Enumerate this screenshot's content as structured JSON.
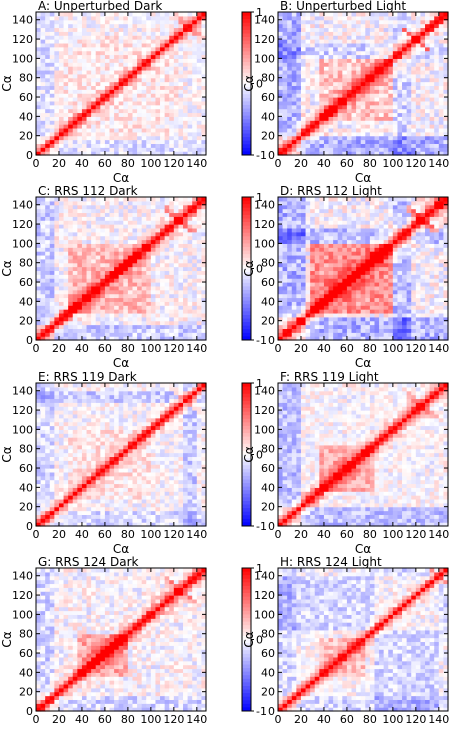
{
  "chart_data": [
    {
      "type": "heatmap",
      "title": "A: Unperturbed Dark",
      "xlabel": "Cα",
      "ylabel": "Cα",
      "xlim": [
        0,
        148
      ],
      "ylim": [
        0,
        148
      ],
      "xticks": [
        0,
        20,
        40,
        60,
        80,
        100,
        120,
        140
      ],
      "yticks": [
        0,
        20,
        40,
        60,
        80,
        100,
        120,
        140
      ],
      "colorbar": {
        "min": -1,
        "max": 1,
        "ticks": [
          "1",
          "0",
          "-1"
        ],
        "colors": [
          "#0000ff",
          "#ffffff",
          "#ff0000"
        ]
      },
      "features": {
        "block": {
          "range": [
            20,
            125
          ],
          "v": 0.08
        },
        "x_cross": {
          "center": 133,
          "halfwidth": 14,
          "v": 0.5
        },
        "neg_bands": [
          {
            "range": [
              0,
              15
            ],
            "v": -0.12
          }
        ],
        "noise": 0.18,
        "diag_width": 4
      }
    },
    {
      "type": "heatmap",
      "title": "B: Unperturbed Light",
      "xlabel": "Cα",
      "ylabel": "Cα",
      "xlim": [
        0,
        148
      ],
      "ylim": [
        0,
        148
      ],
      "xticks": [
        0,
        20,
        40,
        60,
        80,
        100,
        120,
        140
      ],
      "yticks": [
        0,
        20,
        40,
        60,
        80,
        100,
        120,
        140
      ],
      "colorbar": {
        "min": -1,
        "max": 1,
        "ticks": [
          "1",
          "0",
          "-1"
        ],
        "colors": [
          "#0000ff",
          "#ffffff",
          "#ff0000"
        ]
      },
      "features": {
        "block": {
          "range": [
            35,
            100
          ],
          "v": 0.22
        },
        "x_cross": {
          "center": 120,
          "halfwidth": 14,
          "v": 0.6
        },
        "neg_bands": [
          {
            "range": [
              0,
              20
            ],
            "v": -0.3
          },
          {
            "range": [
              100,
              115
            ],
            "v": -0.15
          }
        ],
        "noise": 0.22,
        "diag_width": 5
      }
    },
    {
      "type": "heatmap",
      "title": "C: RRS 112 Dark",
      "xlabel": "Cα",
      "ylabel": "Cα",
      "xlim": [
        0,
        148
      ],
      "ylim": [
        0,
        148
      ],
      "xticks": [
        0,
        20,
        40,
        60,
        80,
        100,
        120,
        140
      ],
      "yticks": [
        0,
        20,
        40,
        60,
        80,
        100,
        120,
        140
      ],
      "colorbar": {
        "min": -1,
        "max": 1,
        "ticks": [
          "1",
          "0",
          "-1"
        ],
        "colors": [
          "#0000ff",
          "#ffffff",
          "#ff0000"
        ]
      },
      "features": {
        "block": {
          "range": [
            30,
            100
          ],
          "v": 0.25
        },
        "x_cross": {
          "center": 125,
          "halfwidth": 14,
          "v": 0.55
        },
        "neg_bands": [
          {
            "range": [
              0,
              15
            ],
            "v": -0.2
          }
        ],
        "noise": 0.2,
        "diag_width": 5
      }
    },
    {
      "type": "heatmap",
      "title": "D: RRS 112 Light",
      "xlabel": "Cα",
      "ylabel": "Cα",
      "xlim": [
        0,
        148
      ],
      "ylim": [
        0,
        148
      ],
      "xticks": [
        0,
        20,
        40,
        60,
        80,
        100,
        120,
        140
      ],
      "yticks": [
        0,
        20,
        40,
        60,
        80,
        100,
        120,
        140
      ],
      "colorbar": {
        "min": -1,
        "max": 1,
        "ticks": [
          "1",
          "0",
          "-1"
        ],
        "colors": [
          "#0000ff",
          "#ffffff",
          "#ff0000"
        ]
      },
      "features": {
        "block": {
          "range": [
            30,
            100
          ],
          "v": 0.42
        },
        "x_cross": {
          "center": 125,
          "halfwidth": 14,
          "v": 0.6
        },
        "neg_bands": [
          {
            "range": [
              0,
              25
            ],
            "v": -0.3
          },
          {
            "range": [
              100,
              115
            ],
            "v": -0.25
          }
        ],
        "noise": 0.22,
        "diag_width": 6
      }
    },
    {
      "type": "heatmap",
      "title": "E: RRS 119 Dark",
      "xlabel": "Cα",
      "ylabel": "Cα",
      "xlim": [
        0,
        148
      ],
      "ylim": [
        0,
        148
      ],
      "xticks": [
        0,
        20,
        40,
        60,
        80,
        100,
        120,
        140
      ],
      "yticks": [
        0,
        20,
        40,
        60,
        80,
        100,
        120,
        140
      ],
      "colorbar": {
        "min": -1,
        "max": 1,
        "ticks": [
          "1",
          "0",
          "-1"
        ],
        "colors": [
          "#0000ff",
          "#ffffff",
          "#ff0000"
        ]
      },
      "features": {
        "block": {
          "range": [
            30,
            100
          ],
          "v": 0.1
        },
        "x_cross": {
          "center": 130,
          "halfwidth": 12,
          "v": 0.4
        },
        "neg_bands": [
          {
            "range": [
              0,
              15
            ],
            "v": -0.15
          },
          {
            "range": [
              130,
              140
            ],
            "v": -0.2
          }
        ],
        "noise": 0.18,
        "diag_width": 4
      }
    },
    {
      "type": "heatmap",
      "title": "F: RRS 119 Light",
      "xlabel": "Cα",
      "ylabel": "Cα",
      "xlim": [
        0,
        148
      ],
      "ylim": [
        0,
        148
      ],
      "xticks": [
        0,
        20,
        40,
        60,
        80,
        100,
        120,
        140
      ],
      "yticks": [
        0,
        20,
        40,
        60,
        80,
        100,
        120,
        140
      ],
      "colorbar": {
        "min": -1,
        "max": 1,
        "ticks": [
          "1",
          "0",
          "-1"
        ],
        "colors": [
          "#0000ff",
          "#ffffff",
          "#ff0000"
        ]
      },
      "features": {
        "block": {
          "range": [
            35,
            85
          ],
          "v": 0.3
        },
        "x_cross": {
          "center": 125,
          "halfwidth": 14,
          "v": 0.6
        },
        "neg_bands": [
          {
            "range": [
              0,
              20
            ],
            "v": -0.25
          }
        ],
        "noise": 0.18,
        "diag_width": 5
      }
    },
    {
      "type": "heatmap",
      "title": "G: RRS 124 Dark",
      "xlabel": "Cα",
      "ylabel": "Cα",
      "xlim": [
        0,
        148
      ],
      "ylim": [
        0,
        148
      ],
      "xticks": [
        0,
        20,
        40,
        60,
        80,
        100,
        120,
        140
      ],
      "yticks": [
        0,
        20,
        40,
        60,
        80,
        100,
        120,
        140
      ],
      "colorbar": {
        "min": -1,
        "max": 1,
        "ticks": [
          "1",
          "0",
          "-1"
        ],
        "colors": [
          "#0000ff",
          "#ffffff",
          "#ff0000"
        ]
      },
      "features": {
        "block": {
          "range": [
            35,
            80
          ],
          "v": 0.35
        },
        "x_cross": {
          "center": 125,
          "halfwidth": 14,
          "v": 0.55
        },
        "neg_bands": [
          {
            "range": [
              0,
              15
            ],
            "v": -0.15
          }
        ],
        "noise": 0.2,
        "diag_width": 5
      }
    },
    {
      "type": "heatmap",
      "title": "H: RRS 124 Light",
      "xlabel": "Cα",
      "ylabel": "Cα",
      "xlim": [
        0,
        148
      ],
      "ylim": [
        0,
        148
      ],
      "xticks": [
        0,
        20,
        40,
        60,
        80,
        100,
        120,
        140
      ],
      "yticks": [
        0,
        20,
        40,
        60,
        80,
        100,
        120,
        140
      ],
      "colorbar": {
        "min": -1,
        "max": 1,
        "ticks": [
          "1",
          "0",
          "-1"
        ],
        "colors": [
          "#0000ff",
          "#ffffff",
          "#ff0000"
        ]
      },
      "features": {
        "block": {
          "range": [
            35,
            75
          ],
          "v": 0.25
        },
        "x_cross": {
          "center": 140,
          "halfwidth": 8,
          "v": 0.4
        },
        "neg_bands": [
          {
            "range": [
              0,
              15
            ],
            "v": -0.15
          },
          {
            "range": [
              85,
              140
            ],
            "v": -0.15
          }
        ],
        "noise": 0.18,
        "diag_width": 4
      }
    }
  ]
}
